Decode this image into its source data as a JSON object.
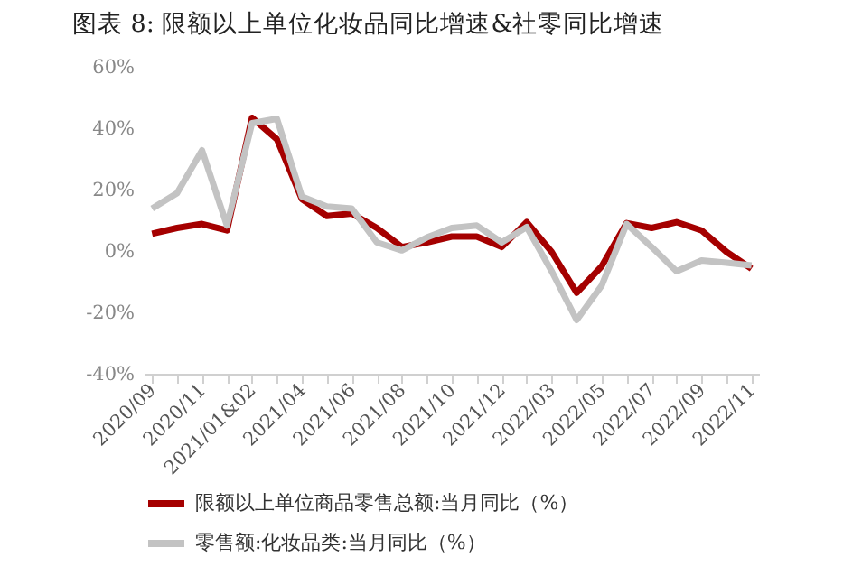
{
  "chart_data": {
    "type": "line",
    "title": "图表 8: 限额以上单位化妆品同比增速&社零同比增速",
    "categories": [
      "2020/09",
      null,
      "2020/11",
      null,
      "2021/01&02",
      null,
      "2021/04",
      null,
      "2021/06",
      null,
      "2021/08",
      null,
      "2021/10",
      null,
      "2021/12",
      null,
      "2022/03",
      null,
      "2022/05",
      null,
      "2022/07",
      null,
      "2022/09",
      null,
      "2022/11"
    ],
    "series": [
      {
        "name": "限额以上单位商品零售总额:当月同比（%）",
        "color": "#a50000",
        "values": [
          5.6,
          7.5,
          8.8,
          6.7,
          43.4,
          36.4,
          16.9,
          11.4,
          12.2,
          7.5,
          1.3,
          2.8,
          4.7,
          4.7,
          1.3,
          9.4,
          -0.3,
          -13.6,
          -5,
          9.1,
          7.5,
          9.4,
          6.7,
          -0.3,
          -5.8
        ]
      },
      {
        "name": "零售额:化妆品类:当月同比（%）",
        "color": "#c3c3c3",
        "values": [
          13.8,
          18.8,
          32.8,
          8.3,
          41.6,
          43.1,
          17.7,
          14.5,
          13.8,
          2.8,
          0.2,
          4.4,
          7.5,
          8.3,
          2.8,
          7.8,
          -6.6,
          -22.5,
          -11.3,
          8.8,
          1.3,
          -6.6,
          -3.1,
          -3.8,
          -4.7
        ]
      }
    ],
    "ylim": [
      -40,
      60
    ],
    "yticks": [
      {
        "value": -40,
        "label": "-40%"
      },
      {
        "value": -20,
        "label": "-20%"
      },
      {
        "value": 0,
        "label": "0%"
      },
      {
        "value": 20,
        "label": "20%"
      },
      {
        "value": 40,
        "label": "40%"
      },
      {
        "value": 60,
        "label": "60%"
      }
    ],
    "legend": "bottom left",
    "grid": false,
    "marker": "none",
    "line_style": "solid"
  }
}
